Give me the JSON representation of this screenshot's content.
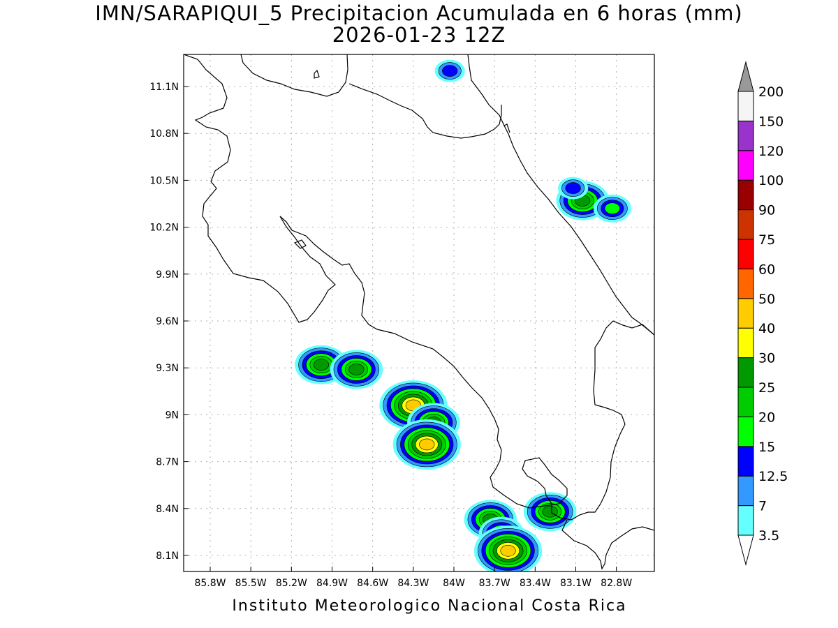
{
  "title_line1": "IMN/SARAPIQUI_5 Precipitacion Acumulada en 6 horas (mm)",
  "title_line2": "2026-01-23 12Z",
  "footer": "Instituto Meteorologico Nacional Costa Rica",
  "lon_ticks": [
    "85.8W",
    "85.5W",
    "85.2W",
    "84.9W",
    "84.6W",
    "84.3W",
    "84W",
    "83.7W",
    "83.4W",
    "83.1W",
    "82.8W"
  ],
  "lat_ticks": [
    "11.1N",
    "10.8N",
    "10.5N",
    "10.2N",
    "9.9N",
    "9.6N",
    "9.3N",
    "9N",
    "8.7N",
    "8.4N",
    "8.1N"
  ],
  "colorbar": {
    "labels": [
      "3.5",
      "7",
      "12.5",
      "15",
      "20",
      "25",
      "30",
      "40",
      "50",
      "60",
      "75",
      "90",
      "100",
      "120",
      "150",
      "200"
    ],
    "colors": [
      "#ffffff",
      "#66ffff",
      "#3399ff",
      "#0000ff",
      "#00ff00",
      "#00cc00",
      "#009900",
      "#ffff00",
      "#ffcc00",
      "#ff6600",
      "#ff0000",
      "#cc3300",
      "#990000",
      "#ff00ff",
      "#9933cc",
      "#f5f5f5",
      "#999999"
    ]
  },
  "rain_cells": [
    {
      "lon": -84.3,
      "lat": 9.06,
      "max": 40
    },
    {
      "lon": -84.15,
      "lat": 8.95,
      "max": 25
    },
    {
      "lon": -84.2,
      "lat": 8.81,
      "max": 40
    },
    {
      "lon": -84.98,
      "lat": 9.32,
      "max": 25
    },
    {
      "lon": -84.72,
      "lat": 9.29,
      "max": 25
    },
    {
      "lon": -83.73,
      "lat": 8.33,
      "max": 25
    },
    {
      "lon": -83.65,
      "lat": 8.24,
      "max": 20
    },
    {
      "lon": -83.6,
      "lat": 8.13,
      "max": 40
    },
    {
      "lon": -83.29,
      "lat": 8.38,
      "max": 25
    },
    {
      "lon": -83.05,
      "lat": 10.37,
      "max": 25
    },
    {
      "lon": -82.83,
      "lat": 10.32,
      "max": 15
    },
    {
      "lon": -83.12,
      "lat": 10.45,
      "max": 12.5
    },
    {
      "lon": -84.03,
      "lat": 11.2,
      "max": 12.5
    }
  ]
}
